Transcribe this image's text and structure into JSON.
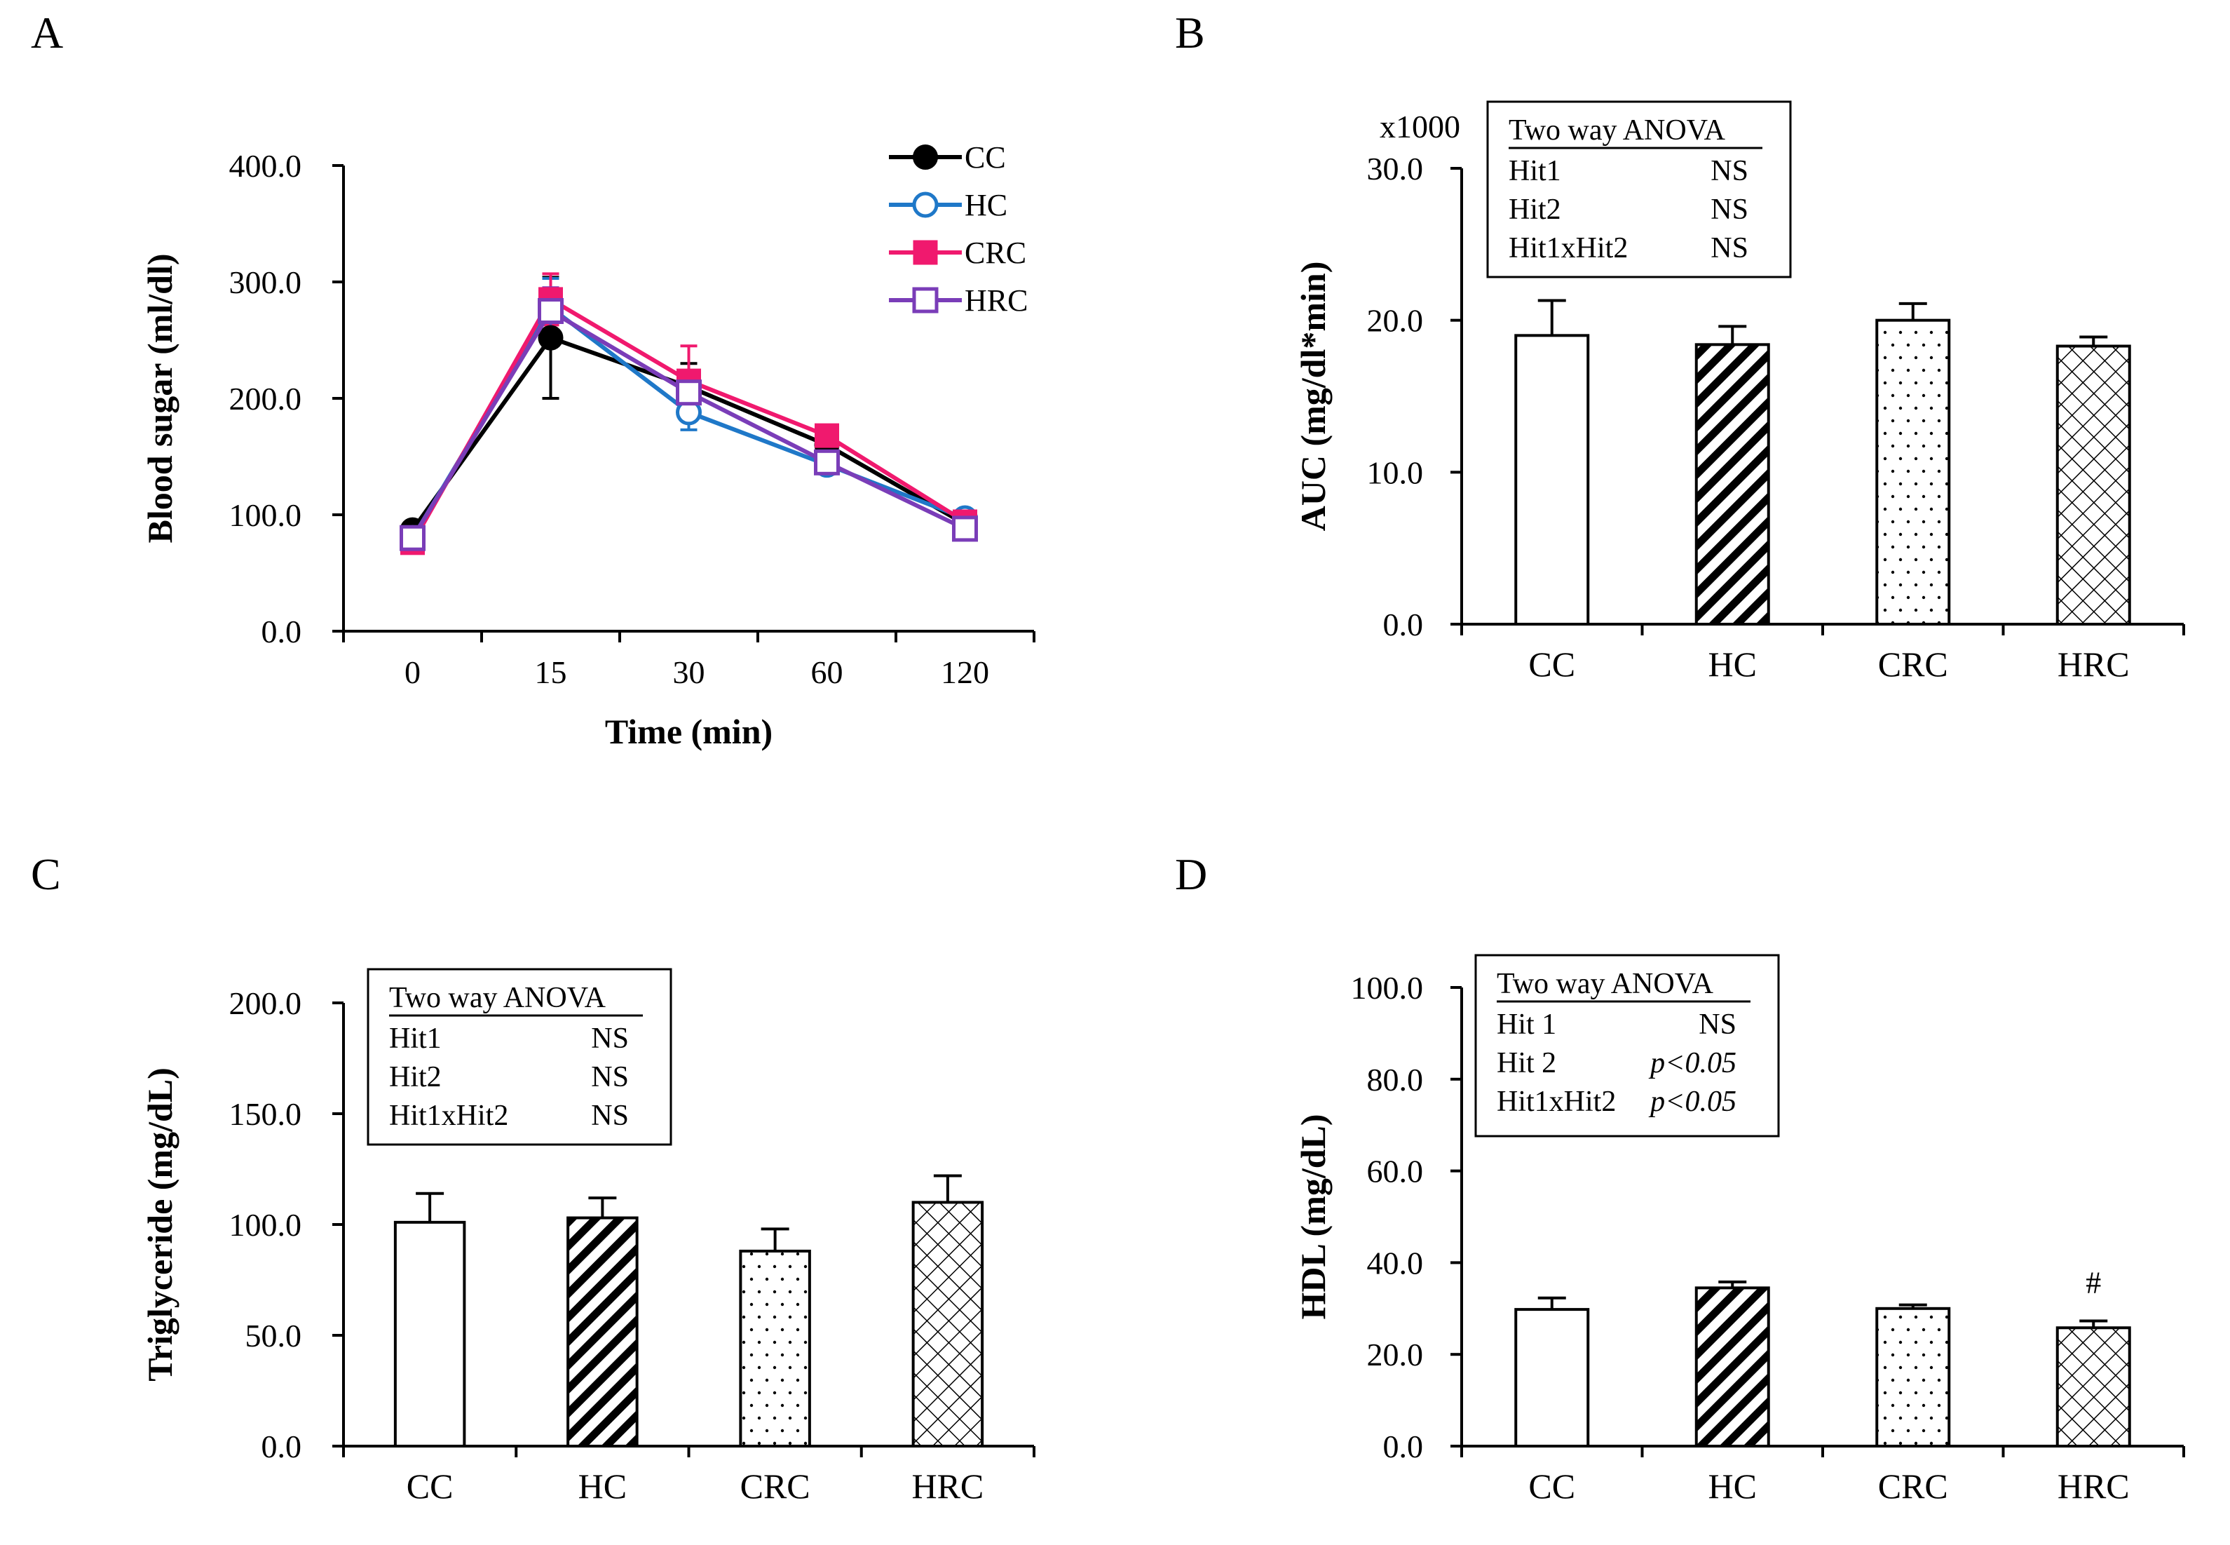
{
  "chart_data": [
    {
      "panel": "A",
      "type": "line",
      "xlabel": "Time (min)",
      "ylabel": "Blood sugar (ml/dl)",
      "categories": [
        "0",
        "15",
        "30",
        "60",
        "120"
      ],
      "ylim": [
        0,
        400
      ],
      "yticks": [
        0,
        100,
        200,
        300,
        400
      ],
      "ytick_labels": [
        "0.0",
        "100.0",
        "200.0",
        "300.0",
        "400.0"
      ],
      "series": [
        {
          "name": "CC",
          "marker": "filled-circle",
          "color": "#000000",
          "values": [
            87,
            252,
            210,
            160,
            92
          ],
          "errors": [
            6,
            52,
            20,
            10,
            6
          ]
        },
        {
          "name": "HC",
          "marker": "open-circle",
          "color": "#1F78C8",
          "values": [
            80,
            278,
            188,
            143,
            97
          ],
          "errors": [
            5,
            25,
            15,
            8,
            5
          ]
        },
        {
          "name": "CRC",
          "marker": "filled-square",
          "color": "#F0196E",
          "values": [
            76,
            285,
            215,
            168,
            94
          ],
          "errors": [
            5,
            22,
            30,
            8,
            5
          ]
        },
        {
          "name": "HRC",
          "marker": "open-square",
          "color": "#7A3DB8",
          "values": [
            80,
            275,
            205,
            145,
            88
          ],
          "errors": [
            5,
            20,
            18,
            8,
            5
          ]
        }
      ]
    },
    {
      "panel": "B",
      "type": "bar",
      "ylabel": "AUC (mg/dl*min)",
      "multiplier_label": "x1000",
      "categories": [
        "CC",
        "HC",
        "CRC",
        "HRC"
      ],
      "values": [
        19.0,
        18.4,
        20.0,
        18.3
      ],
      "errors": [
        2.3,
        1.2,
        1.1,
        0.6
      ],
      "patterns": [
        "none",
        "diagonal",
        "dots",
        "crosshatch"
      ],
      "ylim": [
        0,
        30
      ],
      "yticks": [
        0,
        10,
        20,
        30
      ],
      "ytick_labels": [
        "0.0",
        "10.0",
        "20.0",
        "30.0"
      ],
      "anova": {
        "title": "Two way ANOVA",
        "rows": [
          [
            "Hit1",
            "NS"
          ],
          [
            "Hit2",
            "NS"
          ],
          [
            "Hit1xHit2",
            "NS"
          ]
        ]
      }
    },
    {
      "panel": "C",
      "type": "bar",
      "ylabel": "Triglyceride (mg/dL)",
      "categories": [
        "CC",
        "HC",
        "CRC",
        "HRC"
      ],
      "values": [
        101,
        103,
        88,
        110
      ],
      "errors": [
        13,
        9,
        10,
        12
      ],
      "patterns": [
        "none",
        "diagonal",
        "dots",
        "crosshatch"
      ],
      "ylim": [
        0,
        200
      ],
      "yticks": [
        0,
        50,
        100,
        150,
        200
      ],
      "ytick_labels": [
        "0.0",
        "50.0",
        "100.0",
        "150.0",
        "200.0"
      ],
      "anova": {
        "title": "Two way ANOVA",
        "rows": [
          [
            "Hit1",
            "NS"
          ],
          [
            "Hit2",
            "NS"
          ],
          [
            "Hit1xHit2",
            "NS"
          ]
        ]
      }
    },
    {
      "panel": "D",
      "type": "bar",
      "ylabel": "HDL (mg/dL)",
      "categories": [
        "CC",
        "HC",
        "CRC",
        "HRC"
      ],
      "values": [
        29.8,
        34.5,
        30.0,
        25.8
      ],
      "errors": [
        2.5,
        1.3,
        0.8,
        1.5
      ],
      "patterns": [
        "none",
        "diagonal",
        "dots",
        "crosshatch"
      ],
      "bar_annotations": [
        "",
        "",
        "",
        "#"
      ],
      "ylim": [
        0,
        100
      ],
      "yticks": [
        0,
        20,
        40,
        60,
        80,
        100
      ],
      "ytick_labels": [
        "0.0",
        "20.0",
        "40.0",
        "60.0",
        "80.0",
        "100.0"
      ],
      "anova": {
        "title": "Two way ANOVA",
        "rows": [
          [
            "Hit 1",
            "NS"
          ],
          [
            "Hit 2",
            "p<0.05"
          ],
          [
            "Hit1xHit2",
            "p<0.05"
          ]
        ]
      }
    }
  ]
}
